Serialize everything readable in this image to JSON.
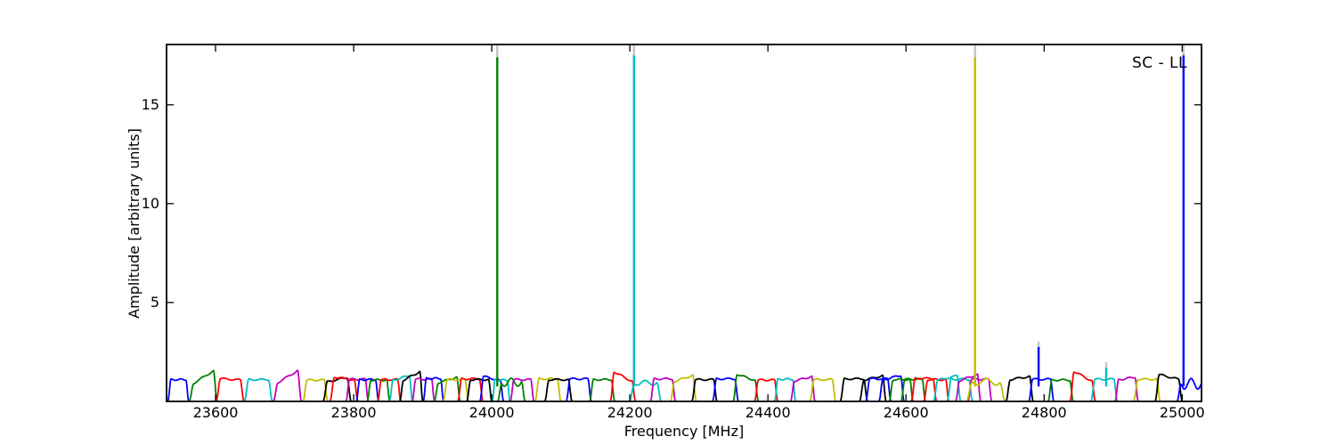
{
  "figure": {
    "background": "#ffffff",
    "frame_color": "#000000",
    "tick_color": "#000000"
  },
  "chart_data": {
    "type": "line",
    "corner_label": "SC - LL",
    "xlabel": "Frequency [MHz]",
    "ylabel": "Amplitude [arbitrary units]",
    "xlim": [
      23529,
      25028
    ],
    "ylim": [
      0,
      18.05
    ],
    "xticks": [
      23600,
      23800,
      24000,
      24200,
      24400,
      24600,
      24800,
      25000
    ],
    "yticks": [
      5,
      10,
      15
    ],
    "grid": false,
    "legend": "none",
    "colors": {
      "b": "#0000ff",
      "g": "#008000",
      "r": "#ff0000",
      "c": "#00bfbf",
      "m": "#bf00bf",
      "y": "#bfbf00",
      "k": "#000000"
    },
    "spike_tip_color": "#c4c4c4",
    "baseline_amplitude": 1.1,
    "bands": [
      {
        "c": "b",
        "f0": 23531,
        "f1": 23561,
        "a": 1.1
      },
      {
        "c": "g",
        "f0": 23562,
        "f1": 23602,
        "a": 1.22,
        "t": 0.8
      },
      {
        "c": "r",
        "f0": 23601,
        "f1": 23641,
        "a": 1.12,
        "t": -0.1
      },
      {
        "c": "c",
        "f0": 23642,
        "f1": 23682,
        "a": 1.1
      },
      {
        "c": "m",
        "f0": 23684,
        "f1": 23724,
        "a": 1.24,
        "t": 0.75
      },
      {
        "c": "y",
        "f0": 23727,
        "f1": 23762,
        "a": 1.08
      },
      {
        "c": "k",
        "f0": 23756,
        "f1": 23796,
        "a": 1.1,
        "t": 0.3
      },
      {
        "c": "r",
        "f0": 23766,
        "f1": 23806,
        "a": 1.16,
        "t": -0.2
      },
      {
        "c": "m",
        "f0": 23789,
        "f1": 23821,
        "a": 1.12
      },
      {
        "c": "b",
        "f0": 23804,
        "f1": 23836,
        "a": 1.1
      },
      {
        "c": "g",
        "f0": 23820,
        "f1": 23852,
        "a": 1.08
      },
      {
        "c": "r",
        "f0": 23835,
        "f1": 23868,
        "a": 1.1
      },
      {
        "c": "c",
        "f0": 23852,
        "f1": 23885,
        "a": 1.18,
        "t": 0.35
      },
      {
        "c": "k",
        "f0": 23867,
        "f1": 23900,
        "a": 1.28,
        "t": 0.5
      },
      {
        "c": "m",
        "f0": 23885,
        "f1": 23917,
        "a": 1.12
      },
      {
        "c": "b",
        "f0": 23901,
        "f1": 23930,
        "a": 1.16
      },
      {
        "c": "g",
        "f0": 23917,
        "f1": 23954,
        "a": 1.08,
        "t": 0.4
      },
      {
        "c": "y",
        "f0": 23930,
        "f1": 23966,
        "a": 1.1
      },
      {
        "c": "r",
        "f0": 23951,
        "f1": 23987,
        "a": 1.14
      },
      {
        "c": "k",
        "f0": 23964,
        "f1": 24000,
        "a": 1.1
      },
      {
        "c": "b",
        "f0": 23983,
        "f1": 24017,
        "a": 1.16,
        "t": -0.3
      },
      {
        "c": "c",
        "f0": 24001,
        "f1": 24026,
        "a": 1.08
      },
      {
        "c": "g",
        "f0": 24009,
        "f1": 24048,
        "a": 1.14,
        "w": 0.34
      },
      {
        "c": "m",
        "f0": 24027,
        "f1": 24061,
        "a": 1.1
      },
      {
        "c": "y",
        "f0": 24063,
        "f1": 24100,
        "a": 1.14
      },
      {
        "c": "k",
        "f0": 24077,
        "f1": 24116,
        "a": 1.1
      },
      {
        "c": "b",
        "f0": 24108,
        "f1": 24144,
        "a": 1.14
      },
      {
        "c": "g",
        "f0": 24142,
        "f1": 24178,
        "a": 1.1
      },
      {
        "c": "r",
        "f0": 24172,
        "f1": 24208,
        "a": 1.26,
        "t": -0.6
      },
      {
        "c": "c",
        "f0": 24200,
        "f1": 24245,
        "a": 1.1,
        "w": 0.32
      },
      {
        "c": "m",
        "f0": 24230,
        "f1": 24266,
        "a": 1.14
      },
      {
        "c": "y",
        "f0": 24259,
        "f1": 24296,
        "a": 1.16,
        "t": 0.4
      },
      {
        "c": "k",
        "f0": 24290,
        "f1": 24326,
        "a": 1.1
      },
      {
        "c": "b",
        "f0": 24320,
        "f1": 24357,
        "a": 1.14
      },
      {
        "c": "g",
        "f0": 24350,
        "f1": 24386,
        "a": 1.22,
        "t": -0.4
      },
      {
        "c": "r",
        "f0": 24381,
        "f1": 24414,
        "a": 1.08
      },
      {
        "c": "c",
        "f0": 24410,
        "f1": 24440,
        "a": 1.12
      },
      {
        "c": "m",
        "f0": 24433,
        "f1": 24468,
        "a": 1.14,
        "t": 0.3
      },
      {
        "c": "y",
        "f0": 24461,
        "f1": 24498,
        "a": 1.1
      },
      {
        "c": "k",
        "f0": 24505,
        "f1": 24544,
        "a": 1.14
      },
      {
        "c": "k",
        "f0": 24533,
        "f1": 24571,
        "a": 1.18,
        "t": 0.3
      },
      {
        "c": "b",
        "f0": 24542,
        "f1": 24578,
        "a": 1.14
      },
      {
        "c": "b",
        "f0": 24561,
        "f1": 24597,
        "a": 1.2,
        "t": 0.3
      },
      {
        "c": "g",
        "f0": 24576,
        "f1": 24610,
        "a": 1.1
      },
      {
        "c": "g",
        "f0": 24593,
        "f1": 24628,
        "a": 1.12
      },
      {
        "c": "r",
        "f0": 24608,
        "f1": 24644,
        "a": 1.16
      },
      {
        "c": "r",
        "f0": 24626,
        "f1": 24662,
        "a": 1.1
      },
      {
        "c": "c",
        "f0": 24640,
        "f1": 24679,
        "a": 1.18,
        "t": 0.3
      },
      {
        "c": "c",
        "f0": 24660,
        "f1": 24696,
        "a": 1.12
      },
      {
        "c": "m",
        "f0": 24672,
        "f1": 24708,
        "a": 1.2,
        "t": 0.4
      },
      {
        "c": "m",
        "f0": 24690,
        "f1": 24724,
        "a": 1.12
      },
      {
        "c": "y",
        "f0": 24688,
        "f1": 24743,
        "a": 1.14,
        "w": 0.3
      },
      {
        "c": "k",
        "f0": 24745,
        "f1": 24784,
        "a": 1.18,
        "t": 0.2
      },
      {
        "c": "b",
        "f0": 24778,
        "f1": 24814,
        "a": 1.12
      },
      {
        "c": "g",
        "f0": 24806,
        "f1": 24842,
        "a": 1.08
      },
      {
        "c": "r",
        "f0": 24838,
        "f1": 24874,
        "a": 1.28,
        "t": -0.6
      },
      {
        "c": "c",
        "f0": 24868,
        "f1": 24906,
        "a": 1.12
      },
      {
        "c": "m",
        "f0": 24903,
        "f1": 24936,
        "a": 1.16,
        "t": 0.2
      },
      {
        "c": "y",
        "f0": 24930,
        "f1": 24968,
        "a": 1.12
      },
      {
        "c": "k",
        "f0": 24961,
        "f1": 25000,
        "a": 1.24,
        "t": -0.3
      },
      {
        "c": "b",
        "f0": 24993,
        "f1": 25032,
        "a": 1.14,
        "w": 0.5
      }
    ],
    "spikes": [
      {
        "freq": 24008,
        "color": "g",
        "top": 17.4,
        "tip": 18.0
      },
      {
        "freq": 24206,
        "color": "c",
        "top": 17.5,
        "tip": 18.0
      },
      {
        "freq": 24700,
        "color": "y",
        "top": 17.4,
        "tip": 18.0
      },
      {
        "freq": 24792,
        "color": "b",
        "top": 2.75,
        "tip": 3.0
      },
      {
        "freq": 24890,
        "color": "c",
        "top": 1.7,
        "tip": 1.95
      },
      {
        "freq": 25002,
        "color": "b",
        "top": 17.5,
        "tip": 18.0
      }
    ]
  }
}
